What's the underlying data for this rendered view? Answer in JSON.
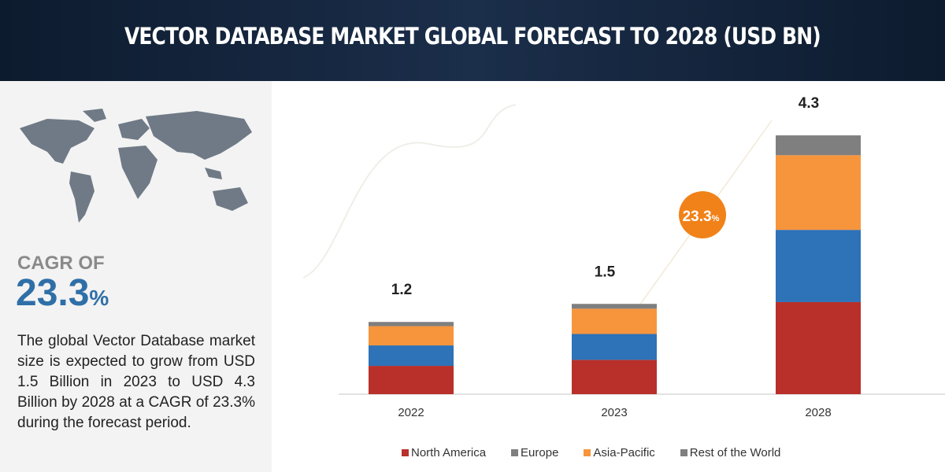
{
  "title": "VECTOR DATABASE MARKET GLOBAL FORECAST TO 2028 (USD BN)",
  "left_panel": {
    "cagr_label": "CAGR OF",
    "cagr_value": "23.3",
    "cagr_pct": "%",
    "description": "The global Vector Database market size is expected to grow from USD 1.5 Billion in 2023 to USD 4.3 Billion by 2028 at a CAGR of 23.3% during the forecast period."
  },
  "chart_data": {
    "type": "bar",
    "stacked": true,
    "title": "Vector Database Market Global Forecast to 2028 (USD BN)",
    "categories": [
      "2022",
      "2023",
      "2028"
    ],
    "totals": [
      "1.2",
      "1.5",
      "4.3"
    ],
    "series": [
      {
        "name": "North America",
        "values": [
          0.47,
          0.57,
          1.53
        ],
        "color": "#b9302a",
        "legend_color": "#b9302a"
      },
      {
        "name": "Europe",
        "values": [
          0.34,
          0.43,
          1.2
        ],
        "color": "#2e72b8",
        "legend_color": "#7f7f7f"
      },
      {
        "name": "Asia-Pacific",
        "values": [
          0.32,
          0.42,
          1.24
        ],
        "color": "#f7953d",
        "legend_color": "#f7953d"
      },
      {
        "name": "Rest of the World",
        "values": [
          0.07,
          0.08,
          0.33
        ],
        "color": "#7f7f7f",
        "legend_color": "#7f7f7f"
      }
    ],
    "ylim": [
      0,
      4.5
    ],
    "grid": false,
    "legend_position": "bottom",
    "annotation": {
      "text": "23.3",
      "suffix": "%",
      "color": "#f08219"
    }
  }
}
